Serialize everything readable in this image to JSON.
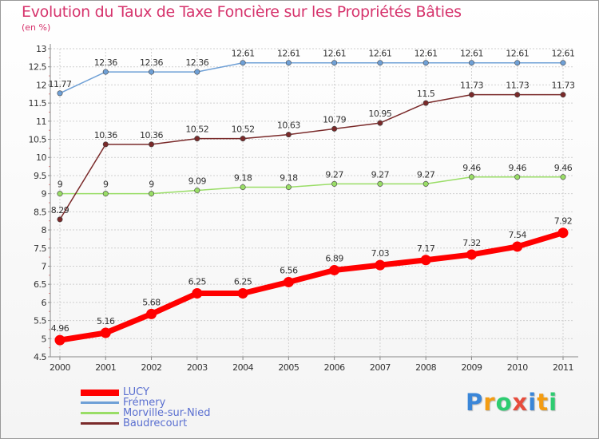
{
  "chart_data": {
    "type": "line",
    "title": "Evolution du Taux de Taxe Foncière sur les Propriétés Bâties",
    "ylabel": "(en %)",
    "xlabel": "",
    "categories": [
      "2000",
      "2001",
      "2002",
      "2003",
      "2004",
      "2005",
      "2006",
      "2007",
      "2008",
      "2009",
      "2010",
      "2011"
    ],
    "ylim": [
      4.5,
      13
    ],
    "yticks": [
      "4.5",
      "5",
      "5.5",
      "6",
      "6.5",
      "7",
      "7.5",
      "8",
      "8.5",
      "9",
      "9.5",
      "10",
      "10.5",
      "11",
      "11.5",
      "12",
      "12.5",
      "13"
    ],
    "series": [
      {
        "name": "LUCY",
        "color": "#ff0000",
        "emphasis": true,
        "values": [
          4.96,
          5.16,
          5.68,
          6.25,
          6.25,
          6.56,
          6.89,
          7.03,
          7.17,
          7.32,
          7.54,
          7.92
        ],
        "labels": [
          "4.96",
          "5.16",
          "5.68",
          "6.25",
          "6.25",
          "6.56",
          "6.89",
          "7.03",
          "7.17",
          "7.32",
          "7.54",
          "7.92"
        ]
      },
      {
        "name": "Frémery",
        "color": "#6fa0d6",
        "values": [
          11.77,
          12.36,
          12.36,
          12.36,
          12.61,
          12.61,
          12.61,
          12.61,
          12.61,
          12.61,
          12.61,
          12.61
        ],
        "labels": [
          "11.77",
          "12.36",
          "12.36",
          "12.36",
          "12.61",
          "12.61",
          "12.61",
          "12.61",
          "12.61",
          "12.61",
          "12.61",
          "12.61"
        ]
      },
      {
        "name": "Morville-sur-Nied",
        "color": "#99dd66",
        "values": [
          9,
          9,
          9,
          9.09,
          9.18,
          9.18,
          9.27,
          9.27,
          9.27,
          9.46,
          9.46,
          9.46
        ],
        "labels": [
          "9",
          "9",
          "9",
          "9.09",
          "9.18",
          "9.18",
          "9.27",
          "9.27",
          "9.27",
          "9.46",
          "9.46",
          "9.46"
        ]
      },
      {
        "name": "Baudrecourt",
        "color": "#7a2a2a",
        "values": [
          8.29,
          10.36,
          10.36,
          10.52,
          10.52,
          10.63,
          10.79,
          10.95,
          11.5,
          11.73,
          11.73,
          11.73
        ],
        "labels": [
          "8.29",
          "10.36",
          "10.36",
          "10.52",
          "10.52",
          "10.63",
          "10.79",
          "10.95",
          "11.5",
          "11.73",
          "11.73",
          "11.73"
        ]
      }
    ]
  },
  "brand": {
    "letters": [
      "P",
      "r",
      "o",
      "x",
      "i",
      "t",
      "i"
    ],
    "colors": [
      "#3a86d8",
      "#f39c12",
      "#2ecc71",
      "#e74c3c",
      "#3a86d8",
      "#f39c12",
      "#2ecc71"
    ]
  }
}
